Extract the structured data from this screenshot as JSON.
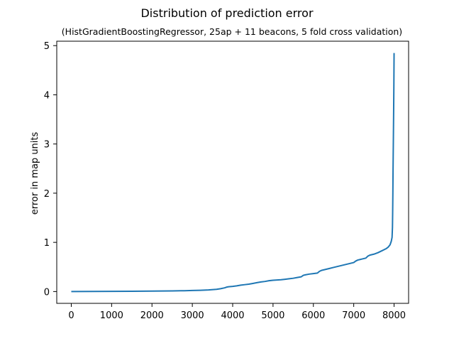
{
  "chart_data": {
    "type": "line",
    "title": "Distribution of prediction error",
    "subtitle": "(HistGradientBoostingRegressor, 25ap + 11 beacons, 5 fold cross validation)",
    "xlabel": "",
    "ylabel": "error in map units",
    "xlim": [
      -360,
      8360
    ],
    "ylim": [
      -0.24,
      5.09
    ],
    "x_ticks": [
      0,
      1000,
      2000,
      3000,
      4000,
      5000,
      6000,
      7000,
      8000
    ],
    "y_ticks": [
      0,
      1,
      2,
      3,
      4,
      5
    ],
    "grid": false,
    "series_color": "#1f77b4",
    "series": [
      {
        "x": [
          0,
          500,
          1000,
          1500,
          2000,
          2500,
          2800,
          3000,
          3200,
          3400,
          3600,
          3700,
          3800,
          3850,
          3900,
          4000,
          4100,
          4200,
          4300,
          4400,
          4500,
          4600,
          4700,
          4800,
          4900,
          5000,
          5100,
          5200,
          5300,
          5400,
          5500,
          5600,
          5700,
          5750,
          5800,
          5900,
          6000,
          6100,
          6150,
          6200,
          6300,
          6400,
          6500,
          6600,
          6700,
          6800,
          6900,
          7000,
          7050,
          7100,
          7200,
          7300,
          7350,
          7400,
          7500,
          7600,
          7700,
          7800,
          7850,
          7900,
          7930,
          7950,
          7960,
          7965,
          7970,
          7975,
          7980,
          7985,
          7990,
          7995,
          8000
        ],
        "y": [
          0.0,
          0.002,
          0.004,
          0.006,
          0.009,
          0.013,
          0.017,
          0.021,
          0.026,
          0.033,
          0.045,
          0.058,
          0.075,
          0.09,
          0.097,
          0.105,
          0.115,
          0.13,
          0.14,
          0.15,
          0.165,
          0.18,
          0.195,
          0.205,
          0.22,
          0.23,
          0.235,
          0.24,
          0.25,
          0.26,
          0.27,
          0.285,
          0.3,
          0.33,
          0.34,
          0.355,
          0.365,
          0.375,
          0.41,
          0.43,
          0.45,
          0.47,
          0.49,
          0.51,
          0.53,
          0.55,
          0.57,
          0.59,
          0.62,
          0.64,
          0.66,
          0.68,
          0.72,
          0.74,
          0.76,
          0.79,
          0.83,
          0.87,
          0.9,
          0.95,
          1.02,
          1.1,
          1.3,
          1.6,
          2.0,
          2.5,
          2.9,
          3.3,
          3.7,
          4.2,
          4.85
        ]
      }
    ]
  }
}
